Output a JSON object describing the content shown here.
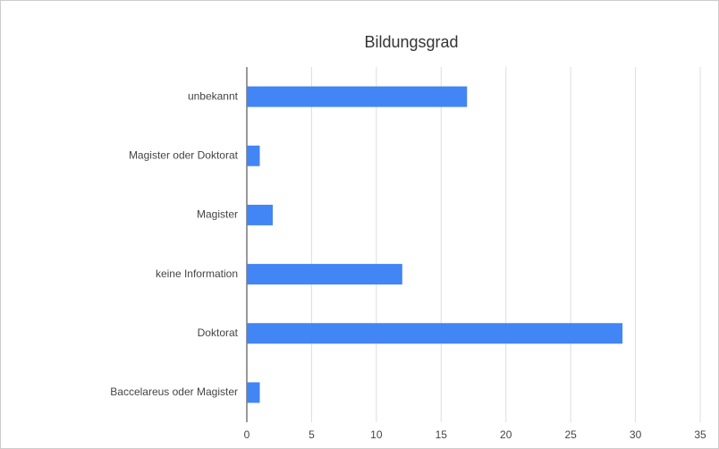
{
  "chart_data": {
    "type": "bar",
    "orientation": "horizontal",
    "title": "Bildungsgrad",
    "categories": [
      "unbekannt",
      "Magister oder Doktorat",
      "Magister",
      "keine Information",
      "Doktorat",
      "Baccelareus oder Magister"
    ],
    "values": [
      17,
      1,
      2,
      12,
      29,
      1
    ],
    "color": "#4285f4",
    "xlim": [
      0,
      35
    ],
    "xticks": [
      0,
      5,
      10,
      15,
      20,
      25,
      30,
      35
    ],
    "grid": true
  }
}
